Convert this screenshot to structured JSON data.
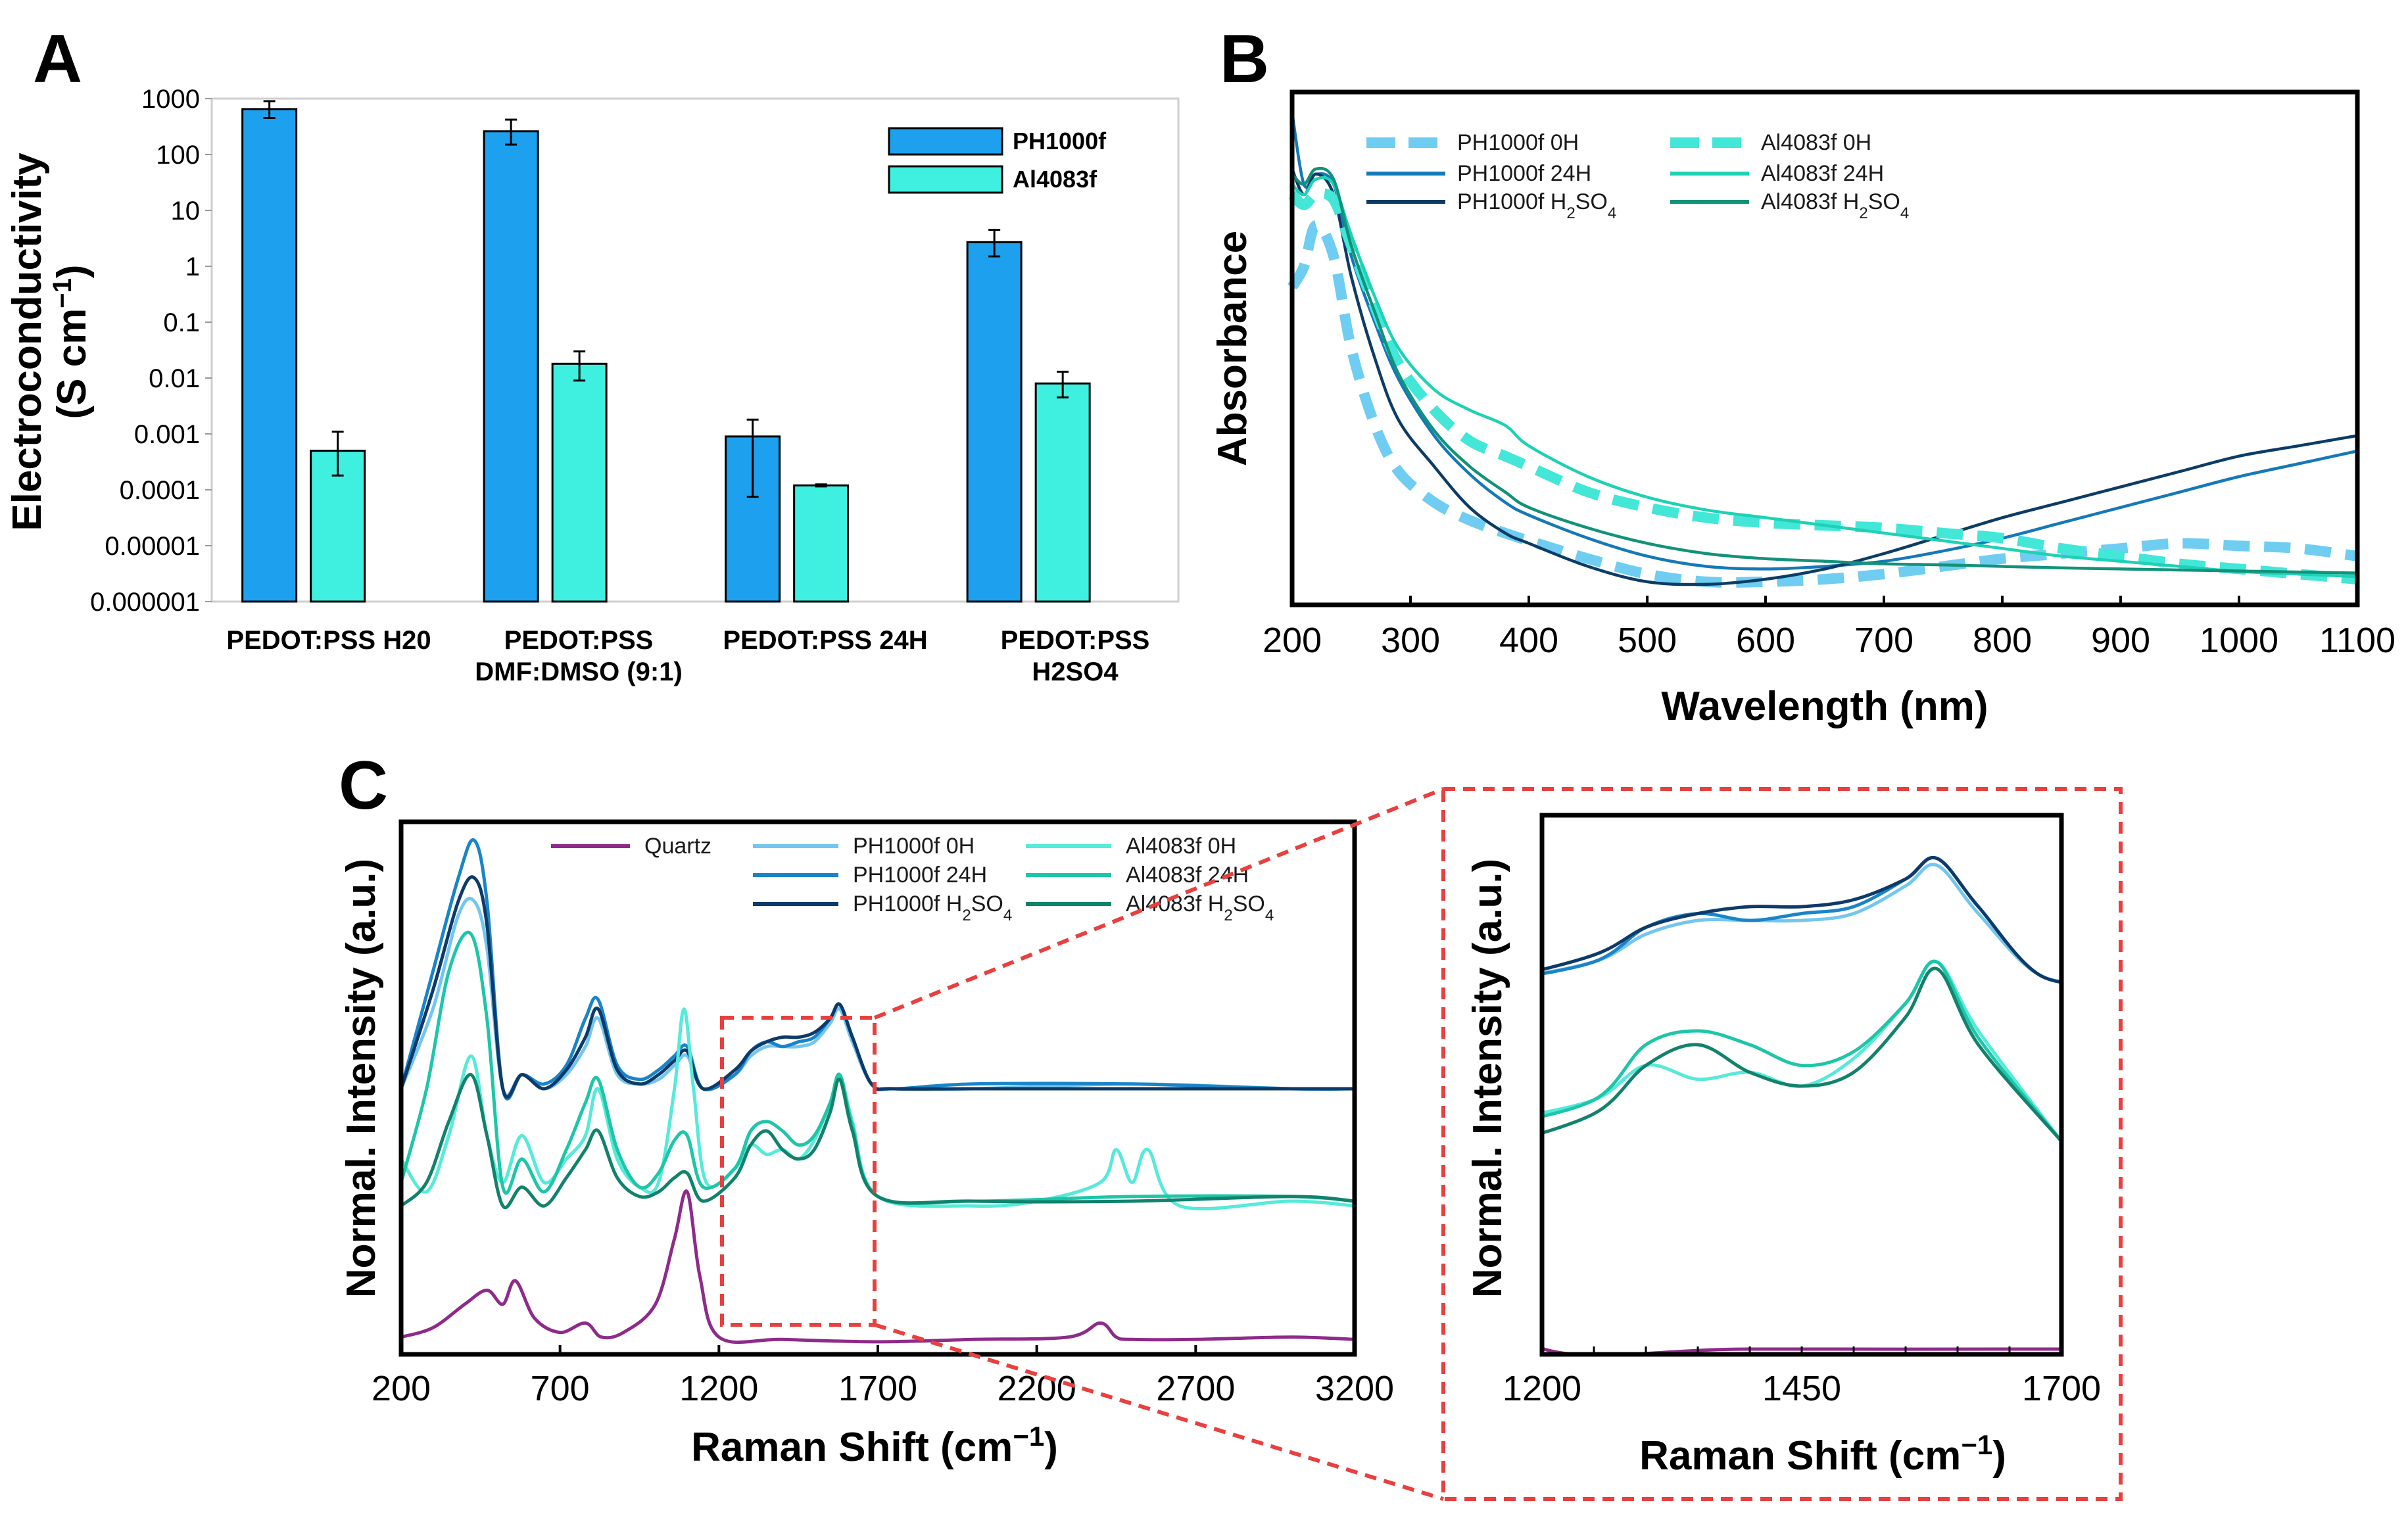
{
  "chart_data": [
    {
      "panel": "A",
      "type": "bar",
      "yscale": "log",
      "ylabel_line1": "Electroconductivity",
      "ylabel_line2": "(S cm",
      "ylabel_sup": "−1",
      "ylabel_end": ")",
      "ylim": [
        1e-06,
        1000
      ],
      "ytick_labels": [
        "1000",
        "100",
        "10",
        "1",
        "0.1",
        "0.01",
        "0.001",
        "0.0001",
        "0.00001",
        "0.000001"
      ],
      "categories": [
        {
          "line1": "PEDOT:PSS H20",
          "line2": ""
        },
        {
          "line1": "PEDOT:PSS",
          "line2": "DMF:DMSO (9:1)"
        },
        {
          "line1": "PEDOT:PSS 24H",
          "line2": ""
        },
        {
          "line1": "PEDOT:PSS",
          "line2": "H2SO4"
        }
      ],
      "series": [
        {
          "name": "PH1000f",
          "color": "#1da1ee",
          "values": [
            650,
            260,
            0.0009,
            2.7
          ],
          "err_low": [
            450,
            150,
            7.5e-05,
            1.5
          ],
          "err_high": [
            900,
            420,
            0.0018,
            4.5
          ]
        },
        {
          "name": "Al4083f",
          "color": "#3ff0e0",
          "values": [
            0.0005,
            0.018,
            0.00012,
            0.008
          ],
          "err_low": [
            0.00018,
            0.009,
            0.000115,
            0.0045
          ],
          "err_high": [
            0.0011,
            0.03,
            0.000125,
            0.013
          ]
        }
      ]
    },
    {
      "panel": "B",
      "type": "line",
      "xlabel": "Wavelength (nm)",
      "ylabel": "Absorbance",
      "xlim": [
        200,
        1100
      ],
      "xticks": [
        "200",
        "300",
        "400",
        "500",
        "600",
        "700",
        "800",
        "900",
        "1000",
        "1100"
      ],
      "series": [
        {
          "name": "PH1000f 0H",
          "sub": "",
          "color": "#6fcdf2",
          "dashed": true,
          "x": [
            200,
            210,
            220,
            235,
            250,
            270,
            290,
            320,
            350,
            380,
            400,
            450,
            500,
            550,
            600,
            650,
            700,
            750,
            800,
            850,
            900,
            950,
            1000,
            1050,
            1100
          ],
          "y": [
            0.62,
            0.66,
            0.74,
            0.68,
            0.5,
            0.35,
            0.26,
            0.2,
            0.165,
            0.14,
            0.125,
            0.09,
            0.06,
            0.045,
            0.045,
            0.05,
            0.06,
            0.075,
            0.09,
            0.1,
            0.11,
            0.12,
            0.115,
            0.11,
            0.095
          ]
        },
        {
          "name": "PH1000f 24H",
          "sub": "",
          "color": "#1479b8",
          "dashed": false,
          "x": [
            200,
            210,
            220,
            235,
            250,
            270,
            290,
            320,
            350,
            380,
            400,
            450,
            500,
            550,
            600,
            650,
            700,
            750,
            800,
            850,
            900,
            950,
            1000,
            1050,
            1100
          ],
          "y": [
            0.96,
            0.82,
            0.84,
            0.82,
            0.68,
            0.55,
            0.44,
            0.33,
            0.255,
            0.2,
            0.175,
            0.13,
            0.095,
            0.075,
            0.07,
            0.075,
            0.085,
            0.105,
            0.13,
            0.16,
            0.19,
            0.22,
            0.25,
            0.275,
            0.3
          ]
        },
        {
          "name": "PH1000f H",
          "sub": "2",
          "tail": "SO",
          "sub2": "4",
          "color": "#0c3c66",
          "dashed": false,
          "x": [
            200,
            210,
            220,
            235,
            250,
            270,
            290,
            320,
            350,
            380,
            400,
            450,
            500,
            550,
            600,
            650,
            700,
            750,
            800,
            850,
            900,
            950,
            1000,
            1050,
            1100
          ],
          "y": [
            0.85,
            0.8,
            0.84,
            0.8,
            0.64,
            0.48,
            0.36,
            0.27,
            0.19,
            0.14,
            0.12,
            0.075,
            0.045,
            0.04,
            0.05,
            0.07,
            0.1,
            0.135,
            0.17,
            0.2,
            0.23,
            0.26,
            0.29,
            0.31,
            0.33
          ]
        },
        {
          "name": "Al4083f 0H",
          "sub": "",
          "color": "#42e7d8",
          "dashed": true,
          "x": [
            200,
            210,
            220,
            235,
            250,
            270,
            290,
            320,
            350,
            380,
            400,
            450,
            500,
            550,
            600,
            650,
            700,
            750,
            800,
            850,
            900,
            950,
            1000,
            1050,
            1100
          ],
          "y": [
            0.8,
            0.78,
            0.8,
            0.79,
            0.7,
            0.58,
            0.47,
            0.38,
            0.32,
            0.29,
            0.27,
            0.22,
            0.19,
            0.17,
            0.16,
            0.155,
            0.15,
            0.14,
            0.13,
            0.11,
            0.095,
            0.08,
            0.07,
            0.06,
            0.05
          ]
        },
        {
          "name": "Al4083f 24H",
          "sub": "",
          "color": "#1ed1b5",
          "dashed": false,
          "x": [
            200,
            210,
            220,
            235,
            250,
            270,
            290,
            320,
            350,
            380,
            400,
            450,
            500,
            550,
            600,
            650,
            700,
            750,
            800,
            850,
            900,
            950,
            1000,
            1050,
            1100
          ],
          "y": [
            0.82,
            0.8,
            0.83,
            0.82,
            0.72,
            0.6,
            0.5,
            0.42,
            0.38,
            0.35,
            0.31,
            0.25,
            0.21,
            0.185,
            0.17,
            0.155,
            0.14,
            0.125,
            0.11,
            0.095,
            0.085,
            0.075,
            0.065,
            0.06,
            0.055
          ]
        },
        {
          "name": "Al4083f H",
          "sub": "2",
          "tail": "SO",
          "sub2": "4",
          "color": "#13927a",
          "dashed": false,
          "x": [
            200,
            210,
            220,
            235,
            250,
            270,
            290,
            320,
            350,
            380,
            400,
            450,
            500,
            550,
            600,
            650,
            700,
            750,
            800,
            850,
            900,
            950,
            1000,
            1050,
            1100
          ],
          "y": [
            0.84,
            0.82,
            0.85,
            0.83,
            0.7,
            0.57,
            0.45,
            0.34,
            0.27,
            0.22,
            0.19,
            0.15,
            0.12,
            0.1,
            0.09,
            0.085,
            0.08,
            0.078,
            0.075,
            0.072,
            0.07,
            0.068,
            0.066,
            0.064,
            0.062
          ]
        }
      ]
    },
    {
      "panel": "C",
      "type": "line",
      "xlabel_main": "Raman Shift (cm",
      "xlabel_sup": "−1",
      "xlabel_end": ")",
      "ylabel": "Normal. Intensity (a.u.)",
      "xlim": [
        200,
        3200
      ],
      "xticks": [
        "200",
        "700",
        "1200",
        "1700",
        "2200",
        "2700",
        "3200"
      ],
      "inset_xlim": [
        1200,
        1700
      ],
      "inset_xticks": [
        "1200",
        "1450",
        "1700"
      ],
      "series": [
        {
          "name": "Quartz",
          "color": "#8e2b8a",
          "x": [
            200,
            300,
            400,
            470,
            520,
            560,
            620,
            700,
            780,
            830,
            900,
            1000,
            1060,
            1100,
            1140,
            1200,
            1400,
            1700,
            2000,
            2300,
            2400,
            2450,
            2500,
            2700,
            3000,
            3200
          ],
          "y": [
            0.02,
            0.04,
            0.09,
            0.12,
            0.09,
            0.14,
            0.06,
            0.03,
            0.05,
            0.02,
            0.03,
            0.09,
            0.23,
            0.33,
            0.15,
            0.02,
            0.015,
            0.01,
            0.015,
            0.02,
            0.05,
            0.02,
            0.015,
            0.015,
            0.02,
            0.015
          ]
        },
        {
          "name": "PH1000f 0H",
          "color": "#73c6ee",
          "x": [
            200,
            300,
            380,
            430,
            470,
            520,
            580,
            650,
            720,
            780,
            820,
            880,
            950,
            1010,
            1060,
            1100,
            1150,
            1250,
            1300,
            1350,
            1400,
            1450,
            1500,
            1550,
            1580,
            1620,
            1680,
            1750,
            2000,
            2500,
            3000,
            3200
          ],
          "y": [
            0.55,
            0.72,
            0.92,
            0.95,
            0.85,
            0.55,
            0.58,
            0.55,
            0.58,
            0.64,
            0.7,
            0.58,
            0.56,
            0.57,
            0.6,
            0.62,
            0.55,
            0.58,
            0.62,
            0.64,
            0.64,
            0.64,
            0.65,
            0.69,
            0.72,
            0.65,
            0.56,
            0.55,
            0.55,
            0.56,
            0.55,
            0.55
          ]
        },
        {
          "name": "PH1000f 24H",
          "color": "#1a84c8",
          "x": [
            200,
            300,
            380,
            430,
            470,
            520,
            580,
            650,
            720,
            780,
            820,
            880,
            950,
            1010,
            1060,
            1100,
            1150,
            1250,
            1300,
            1350,
            1400,
            1450,
            1500,
            1550,
            1580,
            1620,
            1680,
            1750,
            2000,
            2500,
            3000,
            3200
          ],
          "y": [
            0.55,
            0.8,
            1.0,
            1.08,
            0.95,
            0.55,
            0.58,
            0.56,
            0.6,
            0.7,
            0.74,
            0.6,
            0.57,
            0.59,
            0.62,
            0.64,
            0.55,
            0.58,
            0.63,
            0.65,
            0.64,
            0.65,
            0.66,
            0.7,
            0.73,
            0.66,
            0.56,
            0.55,
            0.56,
            0.56,
            0.55,
            0.55
          ]
        },
        {
          "name": "PH1000f H",
          "sub": "2",
          "tail": "SO",
          "sub2": "4",
          "color": "#0e3a6a",
          "x": [
            200,
            300,
            380,
            430,
            470,
            520,
            580,
            650,
            720,
            780,
            820,
            880,
            950,
            1010,
            1060,
            1100,
            1150,
            1250,
            1300,
            1350,
            1400,
            1450,
            1500,
            1550,
            1580,
            1620,
            1680,
            1750,
            2000,
            2500,
            3000,
            3200
          ],
          "y": [
            0.55,
            0.76,
            0.95,
            1.0,
            0.9,
            0.55,
            0.58,
            0.55,
            0.59,
            0.66,
            0.72,
            0.59,
            0.56,
            0.58,
            0.61,
            0.63,
            0.55,
            0.59,
            0.63,
            0.65,
            0.66,
            0.66,
            0.67,
            0.7,
            0.73,
            0.66,
            0.56,
            0.55,
            0.55,
            0.55,
            0.55,
            0.55
          ]
        },
        {
          "name": "Al4083f 0H",
          "color": "#55ead9",
          "x": [
            200,
            280,
            350,
            420,
            470,
            520,
            580,
            650,
            720,
            780,
            820,
            880,
            950,
            1010,
            1060,
            1090,
            1120,
            1160,
            1250,
            1300,
            1350,
            1400,
            1450,
            1500,
            1550,
            1580,
            1620,
            1700,
            2000,
            2200,
            2400,
            2450,
            2500,
            2550,
            2650,
            3000,
            3200
          ],
          "y": [
            0.4,
            0.33,
            0.45,
            0.62,
            0.45,
            0.35,
            0.45,
            0.35,
            0.4,
            0.45,
            0.55,
            0.4,
            0.34,
            0.35,
            0.55,
            0.72,
            0.55,
            0.35,
            0.38,
            0.43,
            0.41,
            0.42,
            0.4,
            0.44,
            0.52,
            0.58,
            0.48,
            0.32,
            0.3,
            0.31,
            0.35,
            0.42,
            0.35,
            0.42,
            0.3,
            0.31,
            0.3
          ]
        },
        {
          "name": "Al4083f 24H",
          "color": "#1dc6a8",
          "x": [
            200,
            280,
            350,
            420,
            470,
            520,
            580,
            650,
            720,
            780,
            820,
            880,
            950,
            1010,
            1060,
            1100,
            1150,
            1250,
            1300,
            1350,
            1400,
            1450,
            1500,
            1550,
            1580,
            1620,
            1700,
            2000,
            2500,
            3000,
            3200
          ],
          "y": [
            0.35,
            0.55,
            0.8,
            0.88,
            0.7,
            0.34,
            0.4,
            0.33,
            0.42,
            0.52,
            0.57,
            0.42,
            0.34,
            0.37,
            0.44,
            0.45,
            0.34,
            0.38,
            0.46,
            0.48,
            0.46,
            0.43,
            0.45,
            0.52,
            0.58,
            0.47,
            0.32,
            0.31,
            0.32,
            0.32,
            0.31
          ]
        },
        {
          "name": "Al4083f H",
          "sub": "2",
          "tail": "SO",
          "sub2": "4",
          "color": "#11826c",
          "x": [
            200,
            280,
            350,
            420,
            470,
            520,
            580,
            650,
            720,
            780,
            820,
            880,
            950,
            1010,
            1060,
            1100,
            1150,
            1250,
            1300,
            1350,
            1400,
            1450,
            1500,
            1550,
            1580,
            1620,
            1700,
            2000,
            2500,
            3000,
            3200
          ],
          "y": [
            0.3,
            0.35,
            0.48,
            0.58,
            0.45,
            0.3,
            0.34,
            0.3,
            0.36,
            0.42,
            0.46,
            0.36,
            0.32,
            0.33,
            0.36,
            0.37,
            0.31,
            0.36,
            0.43,
            0.46,
            0.42,
            0.4,
            0.42,
            0.5,
            0.57,
            0.46,
            0.32,
            0.31,
            0.31,
            0.32,
            0.31
          ]
        }
      ]
    }
  ]
}
